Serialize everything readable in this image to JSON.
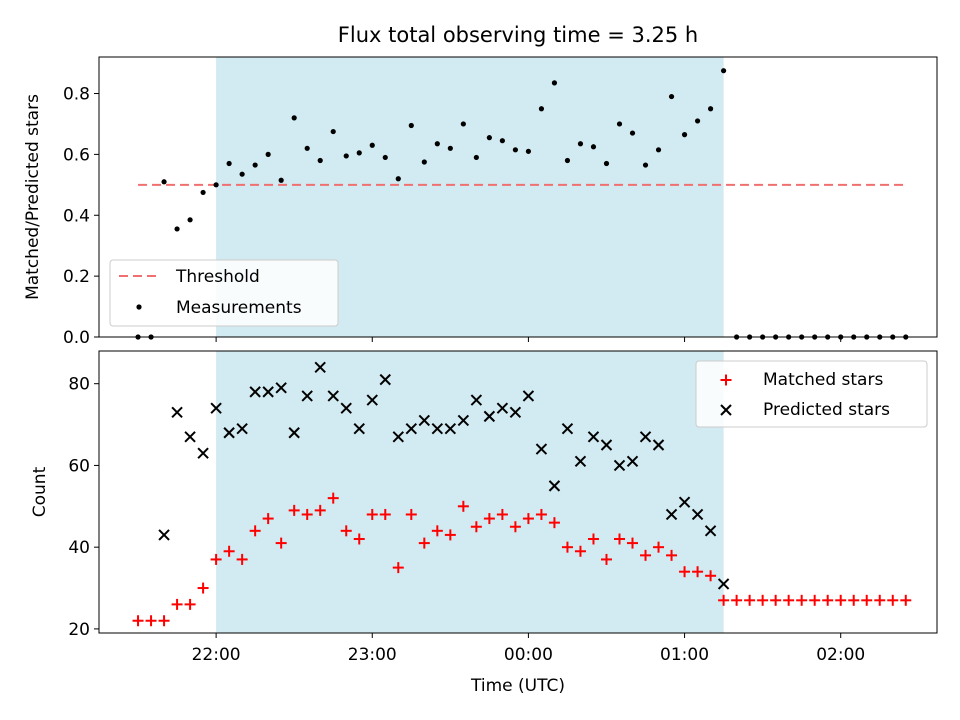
{
  "chart_data": [
    {
      "type": "scatter",
      "title": "Flux total observing time = 3.25 h",
      "xlabel": "",
      "ylabel": "Matched/Predicted stars",
      "ylim": [
        0,
        0.92
      ],
      "yticks": [
        0.0,
        0.2,
        0.4,
        0.6,
        0.8
      ],
      "ytick_labels": [
        "0.0",
        "0.2",
        "0.4",
        "0.6",
        "0.8"
      ],
      "xlim": [
        "21:15",
        "02:37"
      ],
      "xticks": [
        "22:00",
        "23:00",
        "00:00",
        "01:00",
        "02:00"
      ],
      "shaded_interval": {
        "start": "22:00",
        "end": "01:15",
        "color": "#add8e6"
      },
      "threshold": {
        "name": "Threshold",
        "value": 0.5,
        "start": "21:30",
        "end": "02:25",
        "color": "#f07070"
      },
      "legend": {
        "placement": "lower-left",
        "entries": [
          "Threshold",
          "Measurements"
        ]
      },
      "series": [
        {
          "name": "Measurements",
          "color": "#000000",
          "x": [
            "21:30",
            "21:35",
            "21:40",
            "21:45",
            "21:50",
            "21:55",
            "22:00",
            "22:05",
            "22:10",
            "22:15",
            "22:20",
            "22:25",
            "22:30",
            "22:35",
            "22:40",
            "22:45",
            "22:50",
            "22:55",
            "23:00",
            "23:05",
            "23:10",
            "23:15",
            "23:20",
            "23:25",
            "23:30",
            "23:35",
            "23:40",
            "23:45",
            "23:50",
            "23:55",
            "00:00",
            "00:05",
            "00:10",
            "00:15",
            "00:20",
            "00:25",
            "00:30",
            "00:35",
            "00:40",
            "00:45",
            "00:50",
            "00:55",
            "01:00",
            "01:05",
            "01:10",
            "01:15",
            "01:20",
            "01:25",
            "01:30",
            "01:35",
            "01:40",
            "01:45",
            "01:50",
            "01:55",
            "02:00",
            "02:05",
            "02:10",
            "02:15",
            "02:20",
            "02:25"
          ],
          "y": [
            0.0,
            0.0,
            0.51,
            0.355,
            0.385,
            0.475,
            0.5,
            0.57,
            0.535,
            0.565,
            0.6,
            0.515,
            0.72,
            0.62,
            0.58,
            0.675,
            0.595,
            0.605,
            0.63,
            0.59,
            0.52,
            0.695,
            0.575,
            0.635,
            0.62,
            0.7,
            0.59,
            0.655,
            0.645,
            0.615,
            0.61,
            0.75,
            0.835,
            0.58,
            0.635,
            0.625,
            0.57,
            0.7,
            0.67,
            0.565,
            0.615,
            0.79,
            0.665,
            0.71,
            0.75,
            0.875,
            0.0,
            0.0,
            0.0,
            0.0,
            0.0,
            0.0,
            0.0,
            0.0,
            0.0,
            0.0,
            0.0,
            0.0,
            0.0,
            0.0
          ]
        }
      ]
    },
    {
      "type": "scatter",
      "title": "",
      "xlabel": "Time (UTC)",
      "ylabel": "Count",
      "ylim": [
        19,
        88
      ],
      "yticks": [
        20,
        40,
        60,
        80
      ],
      "ytick_labels": [
        "20",
        "40",
        "60",
        "80"
      ],
      "xlim": [
        "21:15",
        "02:37"
      ],
      "xticks": [
        "22:00",
        "23:00",
        "00:00",
        "01:00",
        "02:00"
      ],
      "shaded_interval": {
        "start": "22:00",
        "end": "01:15",
        "color": "#add8e6"
      },
      "legend": {
        "placement": "top-right",
        "entries": [
          "Matched stars",
          "Predicted stars"
        ]
      },
      "series": [
        {
          "name": "Matched stars",
          "color": "#ff0000",
          "marker": "+",
          "x": [
            "21:30",
            "21:35",
            "21:40",
            "21:45",
            "21:50",
            "21:55",
            "22:00",
            "22:05",
            "22:10",
            "22:15",
            "22:20",
            "22:25",
            "22:30",
            "22:35",
            "22:40",
            "22:45",
            "22:50",
            "22:55",
            "23:00",
            "23:05",
            "23:10",
            "23:15",
            "23:20",
            "23:25",
            "23:30",
            "23:35",
            "23:40",
            "23:45",
            "23:50",
            "23:55",
            "00:00",
            "00:05",
            "00:10",
            "00:15",
            "00:20",
            "00:25",
            "00:30",
            "00:35",
            "00:40",
            "00:45",
            "00:50",
            "00:55",
            "01:00",
            "01:05",
            "01:10",
            "01:15",
            "01:20",
            "01:25",
            "01:30",
            "01:35",
            "01:40",
            "01:45",
            "01:50",
            "01:55",
            "02:00",
            "02:05",
            "02:10",
            "02:15",
            "02:20",
            "02:25"
          ],
          "y": [
            22,
            22,
            22,
            26,
            26,
            30,
            37,
            39,
            37,
            44,
            47,
            41,
            49,
            48,
            49,
            52,
            44,
            42,
            48,
            48,
            35,
            48,
            41,
            44,
            43,
            50,
            45,
            47,
            48,
            45,
            47,
            48,
            46,
            40,
            39,
            42,
            37,
            42,
            41,
            38,
            40,
            38,
            34,
            34,
            33,
            27,
            27,
            27,
            27,
            27,
            27,
            27,
            27,
            27,
            27,
            27,
            27,
            27,
            27,
            27
          ]
        },
        {
          "name": "Predicted stars",
          "color": "#000000",
          "marker": "x",
          "x": [
            "21:40",
            "21:45",
            "21:50",
            "21:55",
            "22:00",
            "22:05",
            "22:10",
            "22:15",
            "22:20",
            "22:25",
            "22:30",
            "22:35",
            "22:40",
            "22:45",
            "22:50",
            "22:55",
            "23:00",
            "23:05",
            "23:10",
            "23:15",
            "23:20",
            "23:25",
            "23:30",
            "23:35",
            "23:40",
            "23:45",
            "23:50",
            "23:55",
            "00:00",
            "00:05",
            "00:10",
            "00:15",
            "00:20",
            "00:25",
            "00:30",
            "00:35",
            "00:40",
            "00:45",
            "00:50",
            "00:55",
            "01:00",
            "01:05",
            "01:10",
            "01:15"
          ],
          "y": [
            43,
            73,
            67,
            63,
            74,
            68,
            69,
            78,
            78,
            79,
            68,
            77,
            84,
            77,
            74,
            69,
            76,
            81,
            67,
            69,
            71,
            69,
            69,
            71,
            76,
            72,
            74,
            73,
            77,
            64,
            55,
            69,
            61,
            67,
            65,
            60,
            61,
            67,
            65,
            48,
            51,
            48,
            44,
            31
          ]
        }
      ]
    }
  ]
}
